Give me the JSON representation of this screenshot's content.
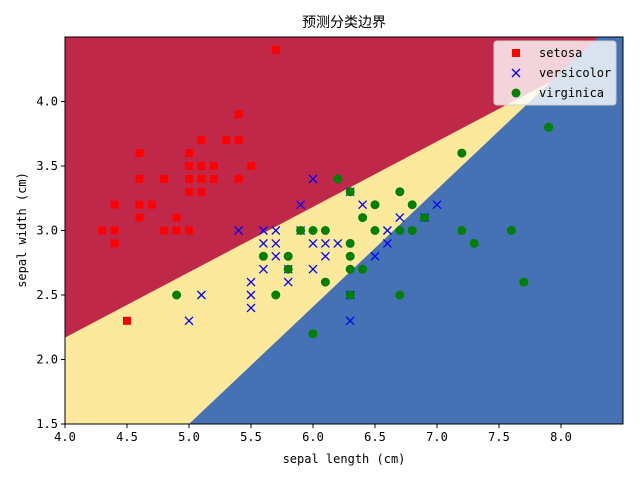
{
  "chart_data": {
    "type": "scatter",
    "title": "预测分类边界",
    "xlabel": "sepal length (cm)",
    "ylabel": "sepal width (cm)",
    "xlim": [
      4.0,
      8.5
    ],
    "ylim": [
      1.5,
      4.5
    ],
    "xticks": [
      "4.0",
      "4.5",
      "5.0",
      "5.5",
      "6.0",
      "6.5",
      "7.0",
      "7.5",
      "8.0"
    ],
    "yticks": [
      "1.5",
      "2.0",
      "2.5",
      "3.0",
      "3.5",
      "4.0"
    ],
    "grid": false,
    "legend_position": "top-right",
    "regions": {
      "setosa_color": "#c0284a",
      "versicolor_color": "#fde99c",
      "virginica_color": "#4472b4"
    },
    "boundaries": {
      "setosa_versicolor": [
        [
          4.0,
          2.17
        ],
        [
          8.5,
          4.45
        ]
      ],
      "versicolor_virginica": [
        [
          5.0,
          1.5
        ],
        [
          8.3,
          4.5
        ]
      ]
    },
    "series": [
      {
        "name": "setosa",
        "marker": "square",
        "color": "#ff0000",
        "points": [
          [
            4.3,
            3.0
          ],
          [
            4.4,
            3.2
          ],
          [
            4.4,
            3.0
          ],
          [
            4.4,
            2.9
          ],
          [
            4.5,
            2.3
          ],
          [
            4.6,
            3.6
          ],
          [
            4.6,
            3.4
          ],
          [
            4.6,
            3.2
          ],
          [
            4.6,
            3.1
          ],
          [
            4.7,
            3.2
          ],
          [
            4.8,
            3.4
          ],
          [
            4.8,
            3.0
          ],
          [
            4.9,
            3.1
          ],
          [
            4.9,
            3.0
          ],
          [
            5.0,
            3.6
          ],
          [
            5.0,
            3.5
          ],
          [
            5.0,
            3.4
          ],
          [
            5.0,
            3.3
          ],
          [
            5.0,
            3.0
          ],
          [
            5.1,
            3.7
          ],
          [
            5.1,
            3.5
          ],
          [
            5.1,
            3.4
          ],
          [
            5.1,
            3.3
          ],
          [
            5.2,
            3.5
          ],
          [
            5.2,
            3.4
          ],
          [
            5.3,
            3.7
          ],
          [
            5.4,
            3.9
          ],
          [
            5.4,
            3.7
          ],
          [
            5.4,
            3.4
          ],
          [
            5.5,
            3.5
          ],
          [
            5.7,
            4.4
          ]
        ]
      },
      {
        "name": "versicolor",
        "marker": "x",
        "color": "#0000ff",
        "points": [
          [
            5.0,
            2.3
          ],
          [
            5.1,
            2.5
          ],
          [
            5.4,
            3.0
          ],
          [
            5.5,
            2.6
          ],
          [
            5.5,
            2.5
          ],
          [
            5.5,
            2.4
          ],
          [
            5.6,
            3.0
          ],
          [
            5.6,
            2.9
          ],
          [
            5.6,
            2.7
          ],
          [
            5.7,
            3.0
          ],
          [
            5.7,
            2.9
          ],
          [
            5.7,
            2.8
          ],
          [
            5.8,
            2.7
          ],
          [
            5.8,
            2.6
          ],
          [
            5.9,
            3.2
          ],
          [
            5.9,
            3.0
          ],
          [
            6.0,
            3.4
          ],
          [
            6.0,
            2.9
          ],
          [
            6.0,
            2.7
          ],
          [
            6.1,
            2.9
          ],
          [
            6.1,
            2.8
          ],
          [
            6.2,
            2.9
          ],
          [
            6.3,
            3.3
          ],
          [
            6.3,
            2.3
          ],
          [
            6.4,
            3.2
          ],
          [
            6.5,
            2.8
          ],
          [
            6.6,
            3.0
          ],
          [
            6.6,
            2.9
          ],
          [
            6.7,
            3.1
          ],
          [
            7.0,
            3.2
          ],
          [
            6.9,
            3.1
          ],
          [
            6.3,
            2.5
          ]
        ]
      },
      {
        "name": "virginica",
        "marker": "circle",
        "color": "#008000",
        "points": [
          [
            4.9,
            2.5
          ],
          [
            5.6,
            2.8
          ],
          [
            5.7,
            2.5
          ],
          [
            5.8,
            2.8
          ],
          [
            5.8,
            2.7
          ],
          [
            5.9,
            3.0
          ],
          [
            6.0,
            3.0
          ],
          [
            6.0,
            2.2
          ],
          [
            6.1,
            3.0
          ],
          [
            6.1,
            2.6
          ],
          [
            6.2,
            3.4
          ],
          [
            6.3,
            3.3
          ],
          [
            6.3,
            2.9
          ],
          [
            6.3,
            2.8
          ],
          [
            6.3,
            2.7
          ],
          [
            6.3,
            2.5
          ],
          [
            6.4,
            3.1
          ],
          [
            6.4,
            2.7
          ],
          [
            6.5,
            3.2
          ],
          [
            6.5,
            3.0
          ],
          [
            6.7,
            3.3
          ],
          [
            6.7,
            3.0
          ],
          [
            6.7,
            2.5
          ],
          [
            6.8,
            3.2
          ],
          [
            6.8,
            3.0
          ],
          [
            6.9,
            3.1
          ],
          [
            7.2,
            3.6
          ],
          [
            7.2,
            3.0
          ],
          [
            7.3,
            2.9
          ],
          [
            7.6,
            3.0
          ],
          [
            7.7,
            2.6
          ],
          [
            7.9,
            3.8
          ]
        ]
      }
    ]
  }
}
